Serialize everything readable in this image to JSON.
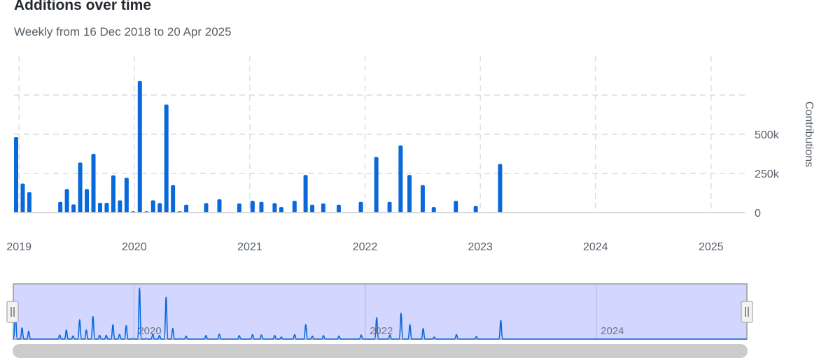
{
  "header": {
    "title": "Additions over time",
    "subtitle": "Weekly from 16 Dec 2018 to 20 Apr 2025"
  },
  "colors": {
    "bar": "#0969da",
    "grid": "#d0d7de",
    "navigator_fill": "#d3d7ff",
    "navigator_line": "#0969da"
  },
  "chart_data": {
    "type": "bar",
    "title": "Additions over time",
    "subtitle": "Weekly from 16 Dec 2018 to 20 Apr 2025",
    "xlabel": "",
    "ylabel": "Contributions",
    "ylim": [
      0,
      750000
    ],
    "yticks": [
      0,
      250000,
      500000
    ],
    "ytick_labels": [
      "0",
      "250k",
      "500k"
    ],
    "xlim": [
      "2018-12-16",
      "2025-04-20"
    ],
    "xticks": [
      "2019-01-01",
      "2020-01-01",
      "2021-01-01",
      "2022-01-01",
      "2023-01-01",
      "2024-01-01",
      "2025-01-01"
    ],
    "xtick_labels": [
      "2019",
      "2020",
      "2021",
      "2022",
      "2023",
      "2024",
      "2025"
    ],
    "grid": true,
    "legend": "none",
    "x": [
      "2018-12-16",
      "2019-01-06",
      "2019-01-27",
      "2019-05-05",
      "2019-05-26",
      "2019-06-16",
      "2019-07-07",
      "2019-07-28",
      "2019-08-18",
      "2019-09-08",
      "2019-09-29",
      "2019-10-20",
      "2019-11-10",
      "2019-12-01",
      "2019-12-22",
      "2020-01-12",
      "2020-02-02",
      "2020-02-23",
      "2020-03-15",
      "2020-04-05",
      "2020-04-26",
      "2020-05-17",
      "2020-06-07",
      "2020-08-09",
      "2020-09-20",
      "2020-11-22",
      "2021-01-03",
      "2021-01-31",
      "2021-03-14",
      "2021-04-04",
      "2021-05-16",
      "2021-06-20",
      "2021-07-11",
      "2021-08-15",
      "2021-10-03",
      "2021-12-12",
      "2022-01-30",
      "2022-03-13",
      "2022-04-17",
      "2022-05-15",
      "2022-06-26",
      "2022-07-31",
      "2022-10-09",
      "2022-12-11",
      "2023-02-26",
      "2023-04-23",
      "2023-06-18",
      "2023-08-20",
      "2023-10-22",
      "2023-11-26",
      "2023-12-17",
      "2024-01-07",
      "2024-01-28",
      "2024-03-03",
      "2024-03-31",
      "2024-04-21",
      "2024-05-19",
      "2024-06-16",
      "2024-07-14",
      "2024-08-11",
      "2024-09-08",
      "2024-10-06",
      "2024-11-03",
      "2024-12-01",
      "2024-12-29",
      "2025-01-26",
      "2025-02-23",
      "2025-03-23"
    ],
    "values": [
      482000,
      185000,
      130000,
      68000,
      150000,
      52000,
      320000,
      150000,
      375000,
      62000,
      62000,
      238000,
      78000,
      222000,
      8000,
      840000,
      8000,
      78000,
      60000,
      690000,
      175000,
      8000,
      50000,
      60000,
      85000,
      58000,
      75000,
      68000,
      60000,
      35000,
      75000,
      240000,
      50000,
      58000,
      50000,
      68000,
      355000,
      68000,
      428000,
      240000,
      175000,
      35000,
      75000,
      42000,
      310000,
      0,
      0,
      0,
      0,
      0,
      0,
      0,
      0,
      0,
      0,
      0,
      0,
      0,
      0,
      0,
      0,
      0,
      0,
      0,
      0,
      0,
      0,
      0
    ]
  },
  "navigator": {
    "labels": [
      "2020",
      "2022",
      "2024"
    ],
    "handle_left_icon": "grip-icon",
    "handle_right_icon": "grip-icon"
  }
}
